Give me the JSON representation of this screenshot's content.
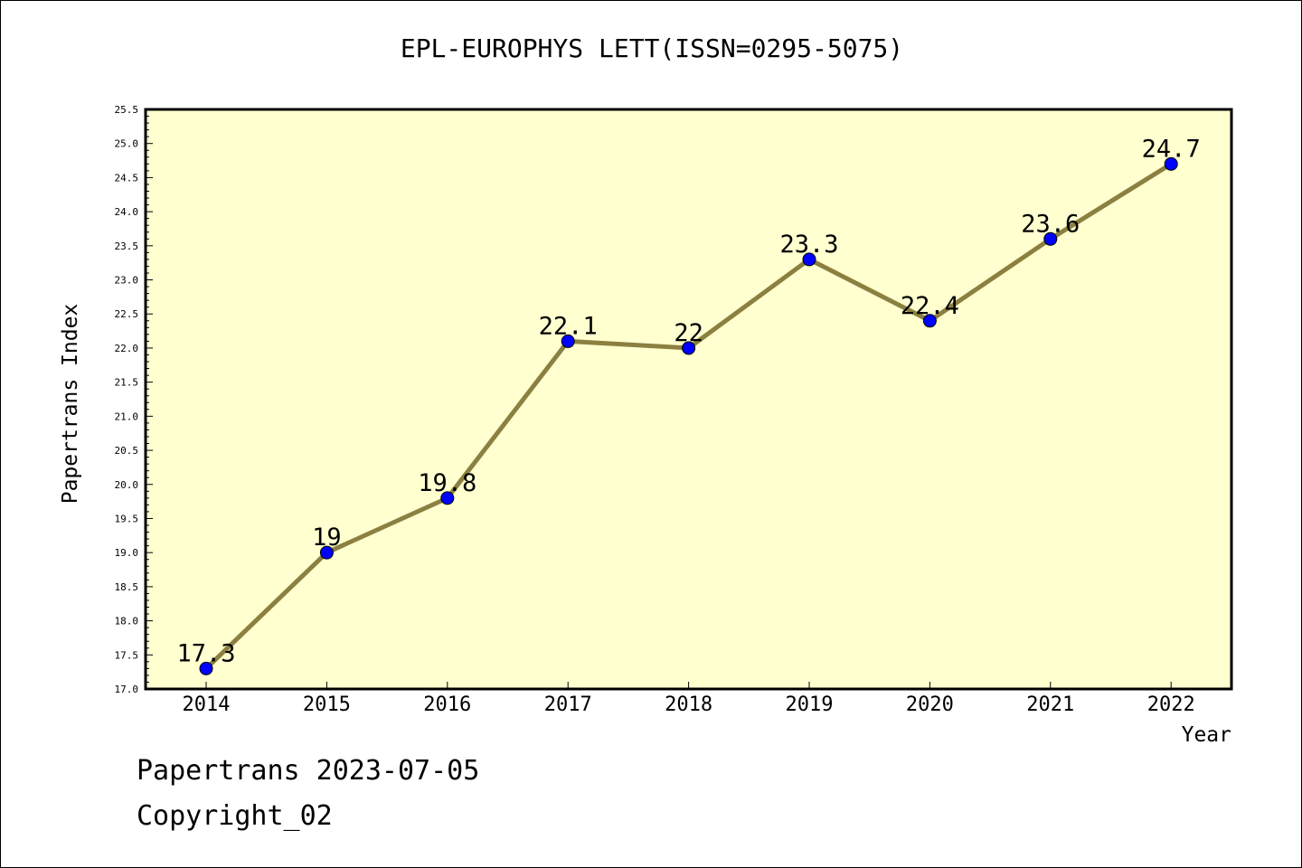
{
  "chart_data": {
    "type": "line",
    "title": "EPL-EUROPHYS LETT(ISSN=0295-5075)",
    "xlabel": "Year",
    "ylabel": "Papertrans Index",
    "categories": [
      "2014",
      "2015",
      "2016",
      "2017",
      "2018",
      "2019",
      "2020",
      "2021",
      "2022"
    ],
    "values": [
      17.3,
      19,
      19.8,
      22.1,
      22,
      23.3,
      22.4,
      23.6,
      24.7
    ],
    "data_labels": [
      "17.3",
      "19",
      "19.8",
      "22.1",
      "22",
      "23.3",
      "22.4",
      "23.6",
      "24.7"
    ],
    "ylim": [
      17.0,
      25.5
    ],
    "yticks": [
      "17.0",
      "17.5",
      "18.0",
      "18.5",
      "19.0",
      "19.5",
      "20.0",
      "20.5",
      "21.0",
      "21.5",
      "22.0",
      "22.5",
      "23.0",
      "23.5",
      "24.0",
      "24.5",
      "25.0",
      "25.5"
    ],
    "grid": false,
    "legend": "none"
  },
  "colors": {
    "plot_background": "#ffffd0",
    "line": "#8b8040",
    "marker": "#0000ff"
  },
  "footer": {
    "line1": "Papertrans 2023-07-05",
    "line2": "Copyright_02"
  }
}
